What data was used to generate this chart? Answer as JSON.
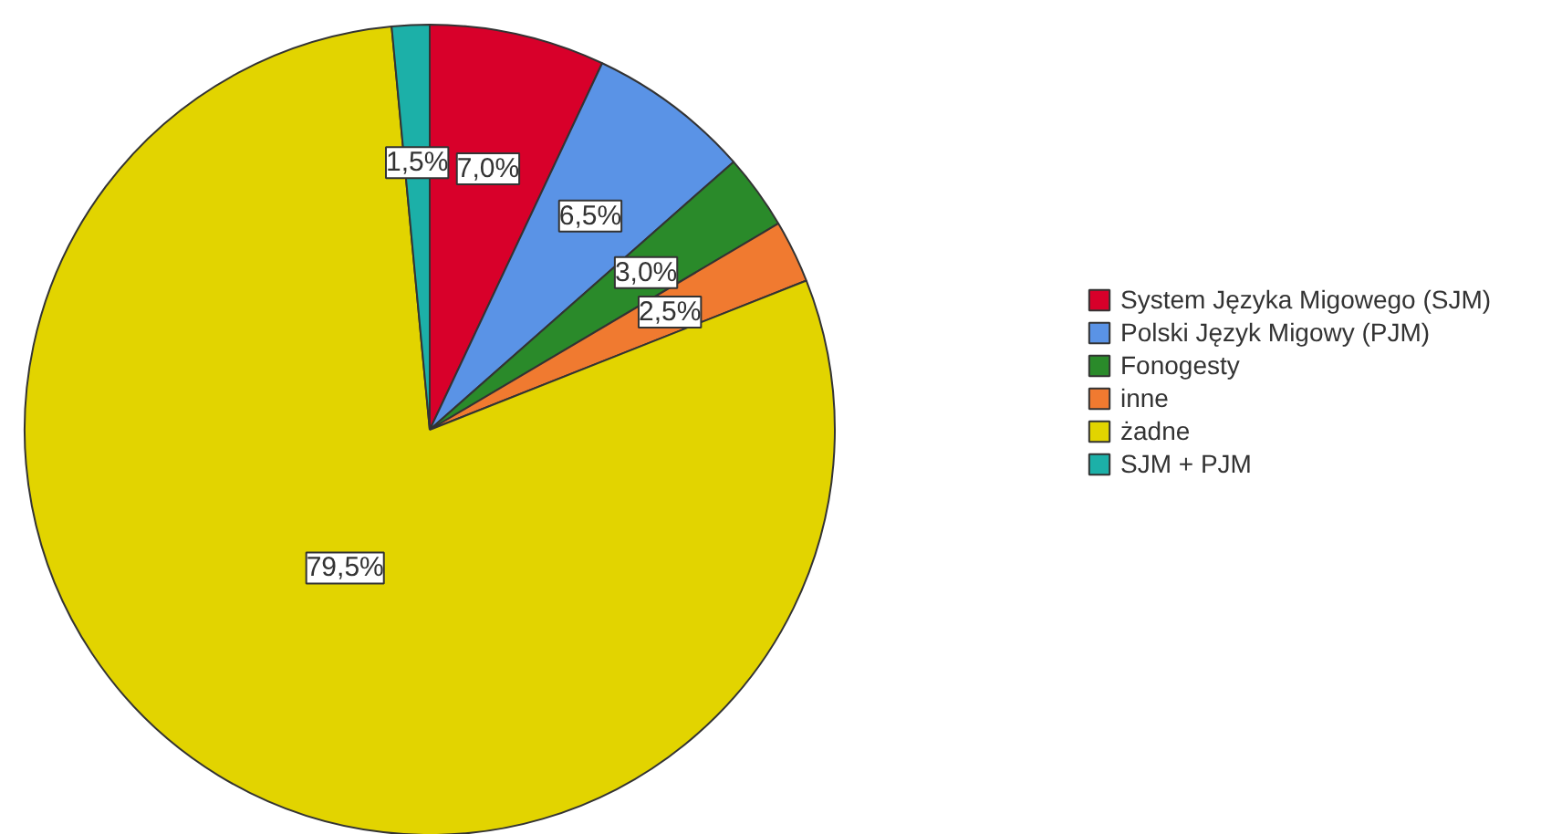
{
  "chart_data": {
    "type": "pie",
    "categories": [
      "System Języka Migowego (SJM)",
      "Polski Język Migowy (PJM)",
      "Fonogesty",
      "inne",
      "żadne",
      "SJM + PJM"
    ],
    "values": [
      7.0,
      6.5,
      3.0,
      2.5,
      79.5,
      1.5
    ],
    "colors": [
      "#d8002a",
      "#5a93e6",
      "#2a8a2a",
      "#f07a30",
      "#e2d400",
      "#1cb0a8"
    ],
    "value_labels": [
      "7,0%",
      "6,5%",
      "3,0%",
      "2,5%",
      "79,5%",
      "1,5%"
    ],
    "legend": "right"
  }
}
